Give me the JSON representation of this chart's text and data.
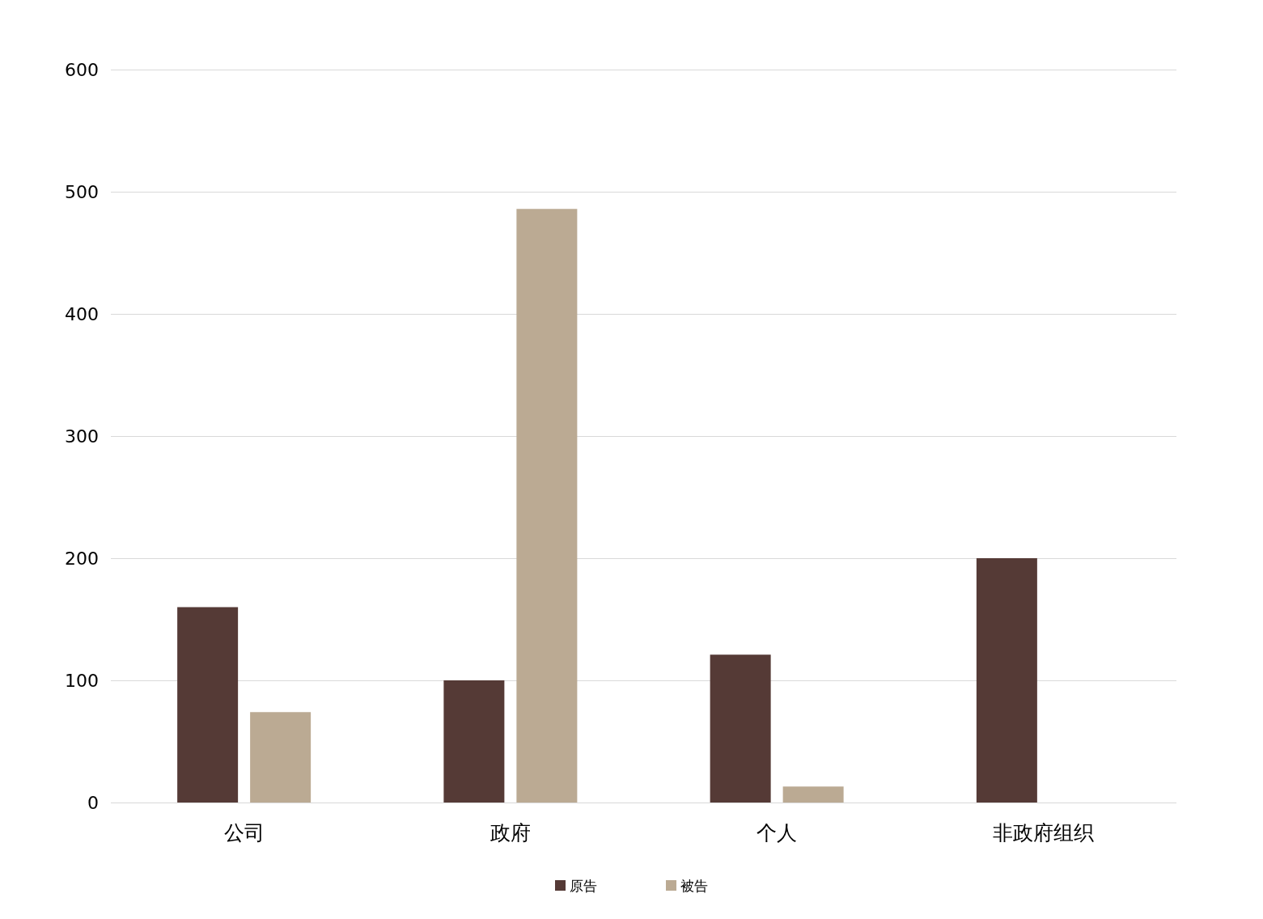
{
  "chart_data": {
    "type": "bar",
    "categories": [
      "公司",
      "政府",
      "个人",
      "非政府组织"
    ],
    "series": [
      {
        "name": "原告",
        "color": "#553a36",
        "values": [
          160,
          100,
          121,
          200
        ]
      },
      {
        "name": "被告",
        "color": "#bbaa93",
        "values": [
          74,
          486,
          13,
          0
        ]
      }
    ],
    "ylim": [
      0,
      600
    ],
    "yticks": [
      0,
      100,
      200,
      300,
      400,
      500,
      600
    ],
    "grid": "y",
    "legend": "bottom"
  }
}
